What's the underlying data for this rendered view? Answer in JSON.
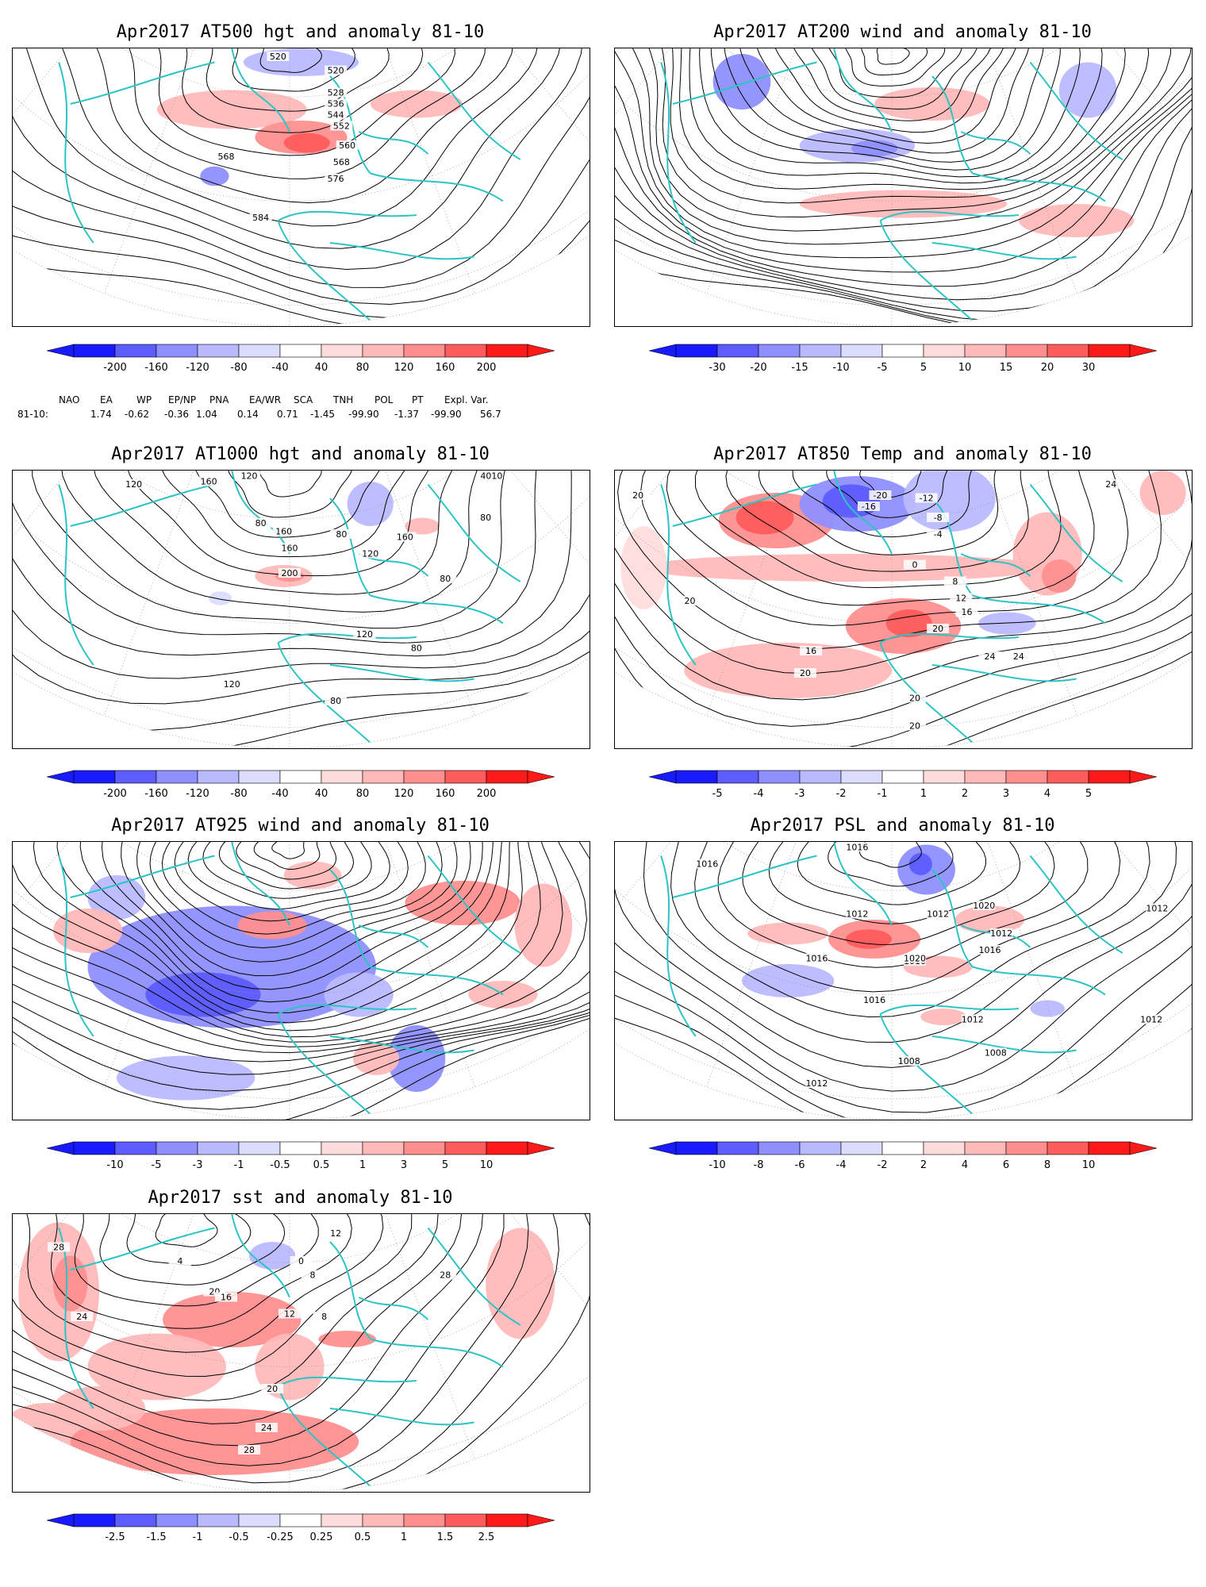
{
  "panels": [
    {
      "id": "at500",
      "title": "Apr2017 AT500 hgt and anomaly 81-10",
      "colorbar": [
        "-200",
        "-160",
        "-120",
        "-80",
        "-40",
        "40",
        "80",
        "120",
        "160",
        "200"
      ],
      "contour_labels": [
        "520",
        "520",
        "528",
        "536",
        "544",
        "552",
        "560",
        "568",
        "568",
        "576",
        "584"
      ]
    },
    {
      "id": "at200",
      "title": "Apr2017 AT200 wind and anomaly 81-10",
      "colorbar": [
        "-30",
        "-20",
        "-15",
        "-10",
        "-5",
        "5",
        "10",
        "15",
        "20",
        "30"
      ],
      "contour_labels": []
    },
    {
      "id": "at1000",
      "title": "Apr2017 AT1000 hgt and anomaly 81-10",
      "colorbar": [
        "-200",
        "-160",
        "-120",
        "-80",
        "-40",
        "40",
        "80",
        "120",
        "160",
        "200"
      ],
      "contour_labels": [
        "120",
        "120",
        "160",
        "160",
        "80",
        "160",
        "80",
        "120",
        "160",
        "200",
        "4010",
        "80",
        "80",
        "120",
        "80",
        "120",
        "80"
      ]
    },
    {
      "id": "at850",
      "title": "Apr2017 AT850 Temp and anomaly 81-10",
      "colorbar": [
        "-5",
        "-4",
        "-3",
        "-2",
        "-1",
        "1",
        "2",
        "3",
        "4",
        "5"
      ],
      "contour_labels": [
        "20",
        "-20",
        "-16",
        "-12",
        "-8",
        "-4",
        "0",
        "8",
        "12",
        "16",
        "20",
        "24",
        "16",
        "20",
        "24",
        "20",
        "20",
        "24",
        "20"
      ]
    },
    {
      "id": "at925",
      "title": "Apr2017 AT925 wind and anomaly 81-10",
      "colorbar": [
        "-10",
        "-5",
        "-3",
        "-1",
        "-0.5",
        "0.5",
        "1",
        "3",
        "5",
        "10"
      ],
      "contour_labels": []
    },
    {
      "id": "psl",
      "title": "Apr2017 PSL and anomaly 81-10",
      "colorbar": [
        "-10",
        "-8",
        "-6",
        "-4",
        "-2",
        "2",
        "4",
        "6",
        "8",
        "10"
      ],
      "contour_labels": [
        "1016",
        "1016",
        "1012",
        "1012",
        "1020",
        "1012",
        "1016",
        "1016",
        "1016",
        "1020",
        "1016",
        "1012",
        "1012",
        "1012",
        "1008",
        "1008",
        "1012"
      ]
    },
    {
      "id": "sst",
      "title": "Apr2017 sst and anomaly 81-10",
      "colorbar": [
        "-2.5",
        "-1.5",
        "-1",
        "-0.5",
        "-0.25",
        "0.25",
        "0.5",
        "1",
        "1.5",
        "2.5"
      ],
      "contour_labels": [
        "28",
        "24",
        "4",
        "0",
        "8",
        "20",
        "16",
        "12",
        "8",
        "20",
        "24",
        "28",
        "28",
        "12"
      ]
    }
  ],
  "teleconnection": {
    "headers": [
      "NAO",
      "EA",
      "WP",
      "EP/NP",
      "PNA",
      "EA/WR",
      "SCA",
      "TNH",
      "POL",
      "PT",
      "Expl. Var."
    ],
    "row_label": "81-10:",
    "values": [
      "1.74",
      "-0.62",
      "-0.36",
      "1.04",
      "0.14",
      "0.71",
      "-1.45",
      "-99.90",
      "-1.37",
      "-99.90",
      "56.7"
    ]
  },
  "colors": {
    "coast": "#2ec4c4",
    "contour": "#000000",
    "neg": [
      "#1a1aff",
      "#5c5cff",
      "#8f8fff",
      "#b9b9ff",
      "#dcdcff"
    ],
    "pos": [
      "#ffdcdc",
      "#ffb9b9",
      "#ff8f8f",
      "#ff5c5c",
      "#ff1a1a"
    ]
  }
}
